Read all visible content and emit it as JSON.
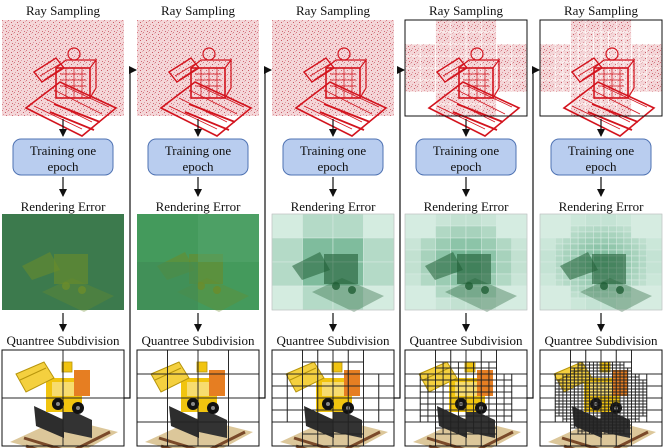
{
  "stages": [
    {
      "ray_label": "Ray Sampling",
      "train_line1": "Training one",
      "train_line2": "epoch",
      "error_label": "Rendering Error",
      "quadtree_label": "Quantree Subdivision"
    },
    {
      "ray_label": "Ray Sampling",
      "train_line1": "Training one",
      "train_line2": "epoch",
      "error_label": "Rendering Error",
      "quadtree_label": "Quantree Subdivision"
    },
    {
      "ray_label": "Ray Sampling",
      "train_line1": "Training one",
      "train_line2": "epoch",
      "error_label": "Rendering Error",
      "quadtree_label": "Quantree Subdivision"
    },
    {
      "ray_label": "Ray Sampling",
      "train_line1": "Training one",
      "train_line2": "epoch",
      "error_label": "Rendering Error",
      "quadtree_label": "Quantree Subdivision"
    },
    {
      "ray_label": "Ray Sampling",
      "train_line1": "Training one",
      "train_line2": "epoch",
      "error_label": "Rendering Error",
      "quadtree_label": "Quantree Subdivision"
    }
  ],
  "colors": {
    "train_box_fill": "#b9cdef",
    "train_box_stroke": "#4f73b3",
    "ray_noise": "#e6a4aa",
    "ray_model": "#d3141e",
    "error_dark": "#3c7a4d",
    "error_light": "#dff2ea",
    "quadtree_line": "#222222",
    "floor": "#dcc79a",
    "model_yellow": "#f1c40f"
  }
}
